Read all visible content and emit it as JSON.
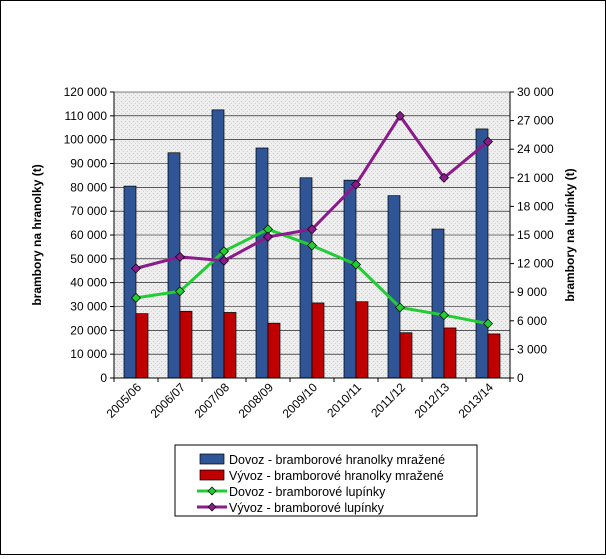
{
  "chart_data": {
    "type": "bar",
    "categories": [
      "2005/06",
      "2006/07",
      "2007/08",
      "2008/09",
      "2009/10",
      "2010/11",
      "2011/12",
      "2012/13",
      "2013/14"
    ],
    "ylabel": "brambory na hranolky (t)",
    "ylim": [
      0,
      120000
    ],
    "y_ticks": [
      "0",
      "10 000",
      "20 000",
      "30 000",
      "40 000",
      "50 000",
      "60 000",
      "70 000",
      "80 000",
      "90 000",
      "100 000",
      "110 000",
      "120 000"
    ],
    "y2label": "brambory na lupínky (t)",
    "y2lim": [
      0,
      30000
    ],
    "y2_ticks": [
      "0",
      "3 000",
      "6 000",
      "9 000",
      "12 000",
      "15 000",
      "18 000",
      "21 000",
      "24 000",
      "27 000",
      "30 000"
    ],
    "legend_position": "bottom",
    "series": [
      {
        "name": "Dovoz - bramborové hranolky mražené",
        "type": "bar",
        "axis": "left",
        "color": "#2f5597",
        "values": [
          80500,
          94500,
          112500,
          96500,
          84000,
          83000,
          76500,
          62500,
          104500
        ]
      },
      {
        "name": "Vývoz - bramborové hranolky mražené",
        "type": "bar",
        "axis": "left",
        "color": "#c00000",
        "values": [
          27000,
          28000,
          27500,
          23000,
          31500,
          32000,
          19000,
          21000,
          18500
        ]
      },
      {
        "name": "Dovoz - bramborové lupínky",
        "type": "line",
        "axis": "right",
        "color": "#22cc33",
        "marker": "diamond",
        "values": [
          8400,
          9100,
          13300,
          15600,
          13900,
          11900,
          7400,
          6600,
          5700
        ]
      },
      {
        "name": "Vývoz - bramborové lupínky",
        "type": "line",
        "axis": "right",
        "color": "#8b1a8b",
        "marker": "diamond",
        "values": [
          11500,
          12700,
          12300,
          14800,
          15600,
          20300,
          27500,
          21000,
          24800
        ]
      }
    ]
  }
}
